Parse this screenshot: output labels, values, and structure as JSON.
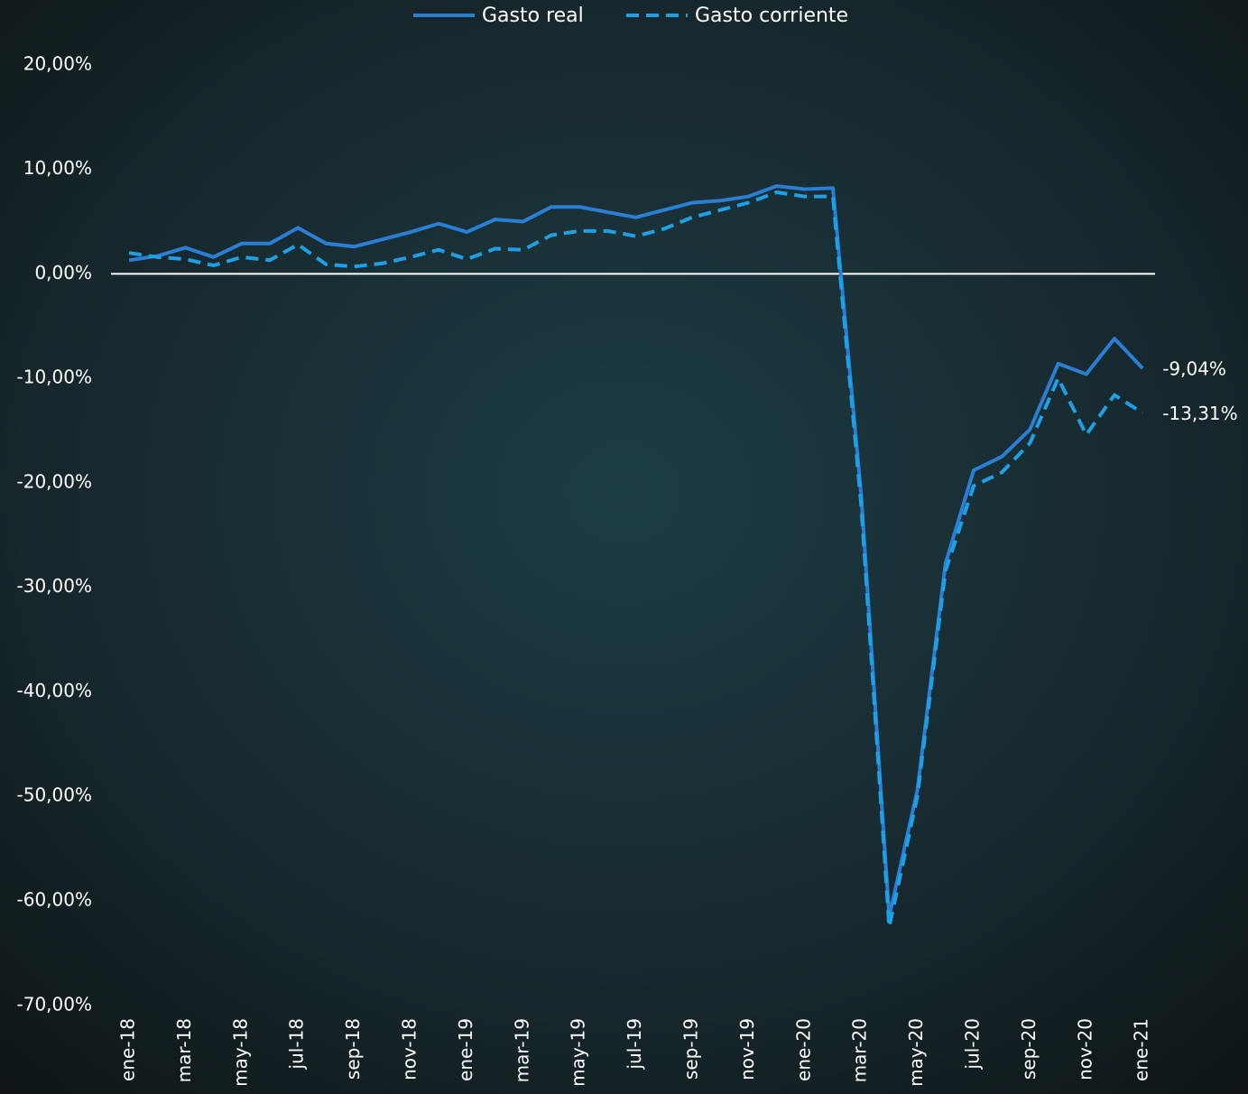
{
  "chart_data": {
    "type": "line",
    "categories": [
      "ene-18",
      null,
      "mar-18",
      null,
      "may-18",
      null,
      "jul-18",
      null,
      "sep-18",
      null,
      "nov-18",
      null,
      "ene-19",
      null,
      "mar-19",
      null,
      "may-19",
      null,
      "jul-19",
      null,
      "sep-19",
      null,
      "nov-19",
      null,
      "ene-20",
      null,
      "mar-20",
      null,
      "may-20",
      null,
      "jul-20",
      null,
      "sep-20",
      null,
      "nov-20",
      null,
      "ene-21"
    ],
    "series": [
      {
        "name": "Gasto real",
        "color": "#2a7fd4",
        "dashed": false,
        "values": [
          1.3,
          1.7,
          2.5,
          1.6,
          2.9,
          2.9,
          4.4,
          2.9,
          2.6,
          3.3,
          4.0,
          4.8,
          4.0,
          5.2,
          5.0,
          6.4,
          6.4,
          5.9,
          5.4,
          6.1,
          6.8,
          7.0,
          7.4,
          8.4,
          8.1,
          8.2,
          -21,
          -61.5,
          -49.4,
          -27.7,
          -18.8,
          -17.5,
          -14.9,
          -8.6,
          -9.6,
          -6.2,
          -9.04
        ],
        "value_labels": [
          null,
          null,
          null,
          null,
          null,
          null,
          null,
          null,
          null,
          null,
          null,
          null,
          null,
          null,
          null,
          null,
          null,
          null,
          null,
          null,
          null,
          null,
          null,
          null,
          null,
          null,
          null,
          null,
          null,
          null,
          null,
          null,
          null,
          null,
          null,
          null,
          "-9,04%"
        ]
      },
      {
        "name": "Gasto corriente",
        "color": "#1ea0e6",
        "dashed": true,
        "values": [
          2.0,
          1.6,
          1.4,
          0.8,
          1.6,
          1.3,
          2.8,
          0.9,
          0.7,
          1.0,
          1.6,
          2.3,
          1.4,
          2.4,
          2.3,
          3.7,
          4.1,
          4.1,
          3.6,
          4.3,
          5.4,
          6.1,
          6.8,
          7.8,
          7.4,
          7.4,
          -22,
          -62.5,
          -50,
          -28.4,
          -20.3,
          -19.0,
          -16.2,
          -10.0,
          -15.4,
          -11.6,
          -13.31
        ],
        "value_labels": [
          null,
          null,
          null,
          null,
          null,
          null,
          null,
          null,
          null,
          null,
          null,
          null,
          null,
          null,
          null,
          null,
          null,
          null,
          null,
          null,
          null,
          null,
          null,
          null,
          null,
          null,
          null,
          null,
          null,
          null,
          null,
          null,
          null,
          null,
          null,
          null,
          "-13,31%"
        ]
      }
    ],
    "ylim": [
      -71.4,
      22.4
    ],
    "yticks": [
      {
        "value": 20,
        "label": "20,00%"
      },
      {
        "value": 10,
        "label": "10,00%"
      },
      {
        "value": 0,
        "label": "0,00%"
      },
      {
        "value": -10,
        "label": "-10,00%"
      },
      {
        "value": -20,
        "label": "-20,00%"
      },
      {
        "value": -30,
        "label": "-30,00%"
      },
      {
        "value": -40,
        "label": "-40,00%"
      },
      {
        "value": -50,
        "label": "-50,00%"
      },
      {
        "value": -60,
        "label": "-60,00%"
      },
      {
        "value": -70,
        "label": "-70,00%"
      }
    ],
    "legend": "top"
  }
}
